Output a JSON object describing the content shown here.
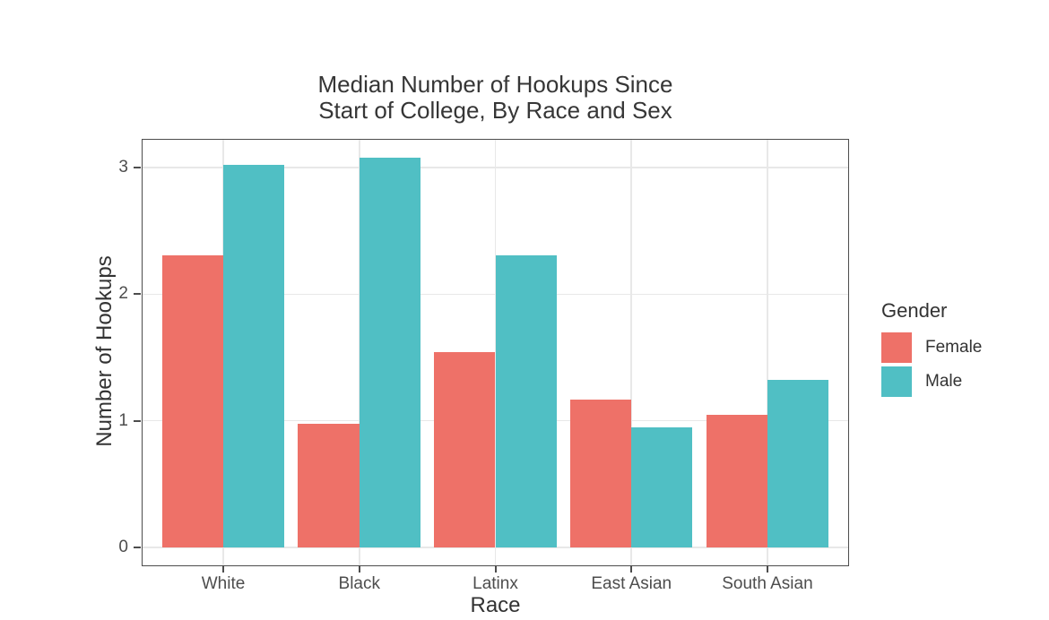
{
  "figure": {
    "title_line1": "Median Number of Hookups Since",
    "title_line2": "Start of College, By Race and Sex",
    "x_axis_title": "Race",
    "y_axis_title": "Number of Hookups"
  },
  "legend": {
    "title": "Gender",
    "items": [
      {
        "label": "Female",
        "color": "#EE7168"
      },
      {
        "label": "Male",
        "color": "#50BFC4"
      }
    ]
  },
  "chart_data": {
    "type": "bar",
    "bar_grouping": "dodged",
    "title": "Median Number of Hookups Since Start of College, By Race and Sex",
    "xlabel": "Race",
    "ylabel": "Number of Hookups",
    "categories": [
      "White",
      "Black",
      "Latinx",
      "East Asian",
      "South Asian"
    ],
    "series": [
      {
        "name": "Female",
        "color": "#EE7168",
        "values": [
          2.31,
          0.98,
          1.54,
          1.17,
          1.05
        ]
      },
      {
        "name": "Male",
        "color": "#50BFC4",
        "values": [
          3.02,
          3.08,
          2.31,
          0.95,
          1.32
        ]
      }
    ],
    "y_ticks": [
      0,
      1,
      2,
      3
    ],
    "ylim": [
      0,
      3.23
    ],
    "grid": true,
    "legend_title": "Gender",
    "legend_position": "right",
    "colors": {
      "gridline": "#E8E8E8",
      "panel_border": "#4D4D4D",
      "tick": "#4D4D4D",
      "tick_label": "#4D4D4D",
      "background": "#FFFFFF"
    }
  }
}
